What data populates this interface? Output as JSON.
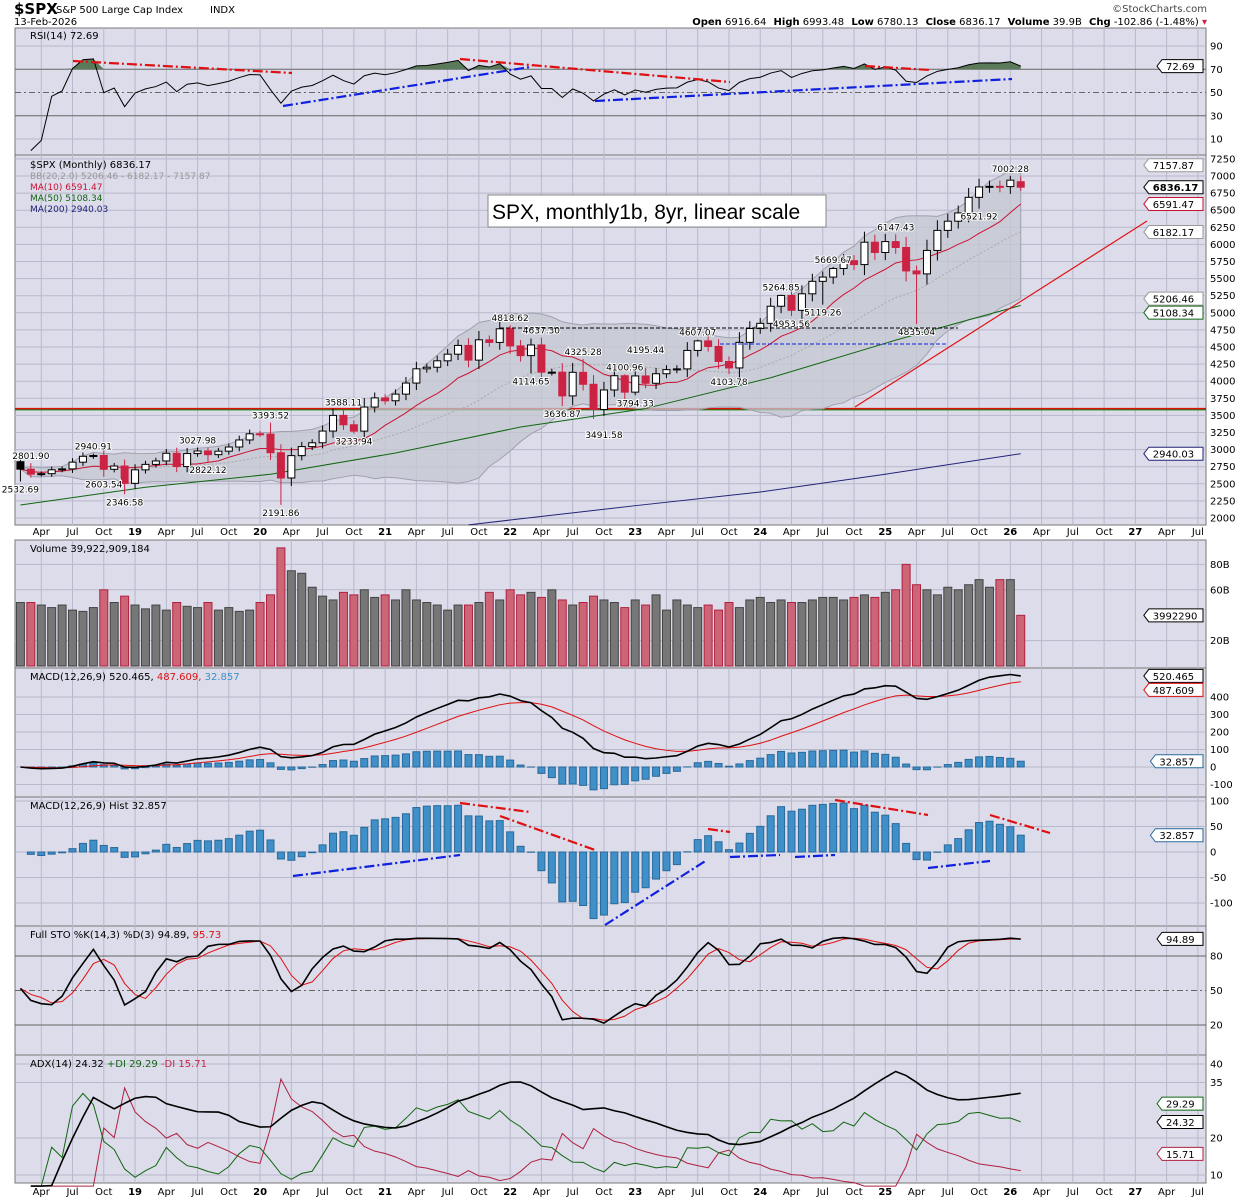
{
  "header": {
    "symbol": "$SPX",
    "name": "S&P 500 Large Cap Index",
    "exchange": "INDX",
    "date": "13-Feb-2026",
    "watermark": "©StockCharts.com",
    "open_label": "Open",
    "open": "6916.64",
    "high_label": "High",
    "high": "6993.48",
    "low_label": "Low",
    "low": "6780.13",
    "close_label": "Close",
    "close": "6836.17",
    "volume_label": "Volume",
    "volume": "39.9B",
    "chg_label": "Chg",
    "chg": "-102.86 (-1.48%)"
  },
  "colors": {
    "up": "#000000",
    "down": "#cc2244",
    "bg": "#dcdcea",
    "ma10": "#cc1133",
    "ma50": "#116611",
    "ma200": "#222277",
    "bb": "#a0a0b0",
    "hist": "#3f8fc8"
  },
  "chart_data": {
    "type": "candlestick",
    "title": "SPX, monthly1b, 8yr, linear scale",
    "start_month": "2018-02",
    "x_axis_labels": [
      "Apr",
      "Jul",
      "Oct",
      "19",
      "Apr",
      "Jul",
      "Oct",
      "20",
      "Apr",
      "Jul",
      "Oct",
      "21",
      "Apr",
      "Jul",
      "Oct",
      "22",
      "Apr",
      "Jul",
      "Oct",
      "23",
      "Apr",
      "Jul",
      "Oct",
      "24",
      "Apr",
      "Jul",
      "Oct",
      "25",
      "Apr",
      "Jul",
      "Oct",
      "26",
      "Apr",
      "Jul",
      "Oct",
      "27",
      "Apr",
      "Jul"
    ],
    "closes": [
      2714,
      2641,
      2648,
      2705,
      2718,
      2816,
      2902,
      2914,
      2712,
      2760,
      2507,
      2704,
      2784,
      2834,
      2946,
      2752,
      2942,
      2980,
      2926,
      2977,
      3038,
      3141,
      3231,
      3226,
      2954,
      2585,
      2912,
      3044,
      3100,
      3271,
      3500,
      3363,
      3270,
      3622,
      3756,
      3714,
      3811,
      3973,
      4181,
      4204,
      4298,
      4395,
      4523,
      4308,
      4605,
      4567,
      4766,
      4516,
      4374,
      4530,
      4132,
      4132,
      3785,
      4130,
      3955,
      3586,
      3872,
      4080,
      3840,
      4077,
      3970,
      4109,
      4169,
      4180,
      4450,
      4589,
      4508,
      4288,
      4194,
      4568,
      4770,
      4846,
      5096,
      5254,
      5036,
      5278,
      5460,
      5522,
      5648,
      5762,
      5705,
      6032,
      5882,
      6041,
      5955,
      5612,
      5569,
      5912,
      6205,
      6339,
      6460,
      6688,
      6840,
      6849,
      6845,
      6939,
      6836.17
    ],
    "first_open": 2823,
    "last_bar": {
      "open": 6916.64,
      "high": 6993.48,
      "low": 6780.13,
      "close": 6836.17
    },
    "volume_billions": [
      50,
      50,
      48,
      46,
      48,
      44,
      43,
      46,
      60,
      50,
      55,
      48,
      45,
      48,
      44,
      50,
      47,
      46,
      50,
      44,
      46,
      43,
      44,
      50,
      56,
      93,
      75,
      73,
      62,
      55,
      52,
      58,
      56,
      60,
      54,
      56,
      52,
      60,
      52,
      50,
      48,
      44,
      48,
      48,
      50,
      58,
      52,
      60,
      56,
      58,
      54,
      60,
      52,
      48,
      50,
      55,
      52,
      50,
      46,
      52,
      48,
      56,
      44,
      52,
      48,
      46,
      48,
      44,
      50,
      46,
      52,
      54,
      50,
      52,
      50,
      50,
      52,
      54,
      54,
      52,
      54,
      56,
      54,
      58,
      60,
      80,
      64,
      60,
      56,
      62,
      60,
      64,
      68,
      62,
      68,
      68,
      39.9
    ],
    "annotations": [
      {
        "month": 2,
        "label": "2801.90",
        "kind": "high"
      },
      {
        "month": 1,
        "label": "2532.69",
        "kind": "low"
      },
      {
        "month": 8,
        "label": "2940.91",
        "kind": "high"
      },
      {
        "month": 9,
        "label": "2603.54",
        "kind": "low"
      },
      {
        "month": 11,
        "label": "2346.58",
        "kind": "low"
      },
      {
        "month": 18,
        "label": "3027.98",
        "kind": "high"
      },
      {
        "month": 19,
        "label": "2822.12",
        "kind": "low"
      },
      {
        "month": 25,
        "label": "3393.52",
        "kind": "high"
      },
      {
        "month": 26,
        "label": "2191.86",
        "kind": "low"
      },
      {
        "month": 32,
        "label": "3588.11",
        "kind": "high"
      },
      {
        "month": 33,
        "label": "3233.94",
        "kind": "low"
      },
      {
        "month": 48,
        "label": "4818.62",
        "kind": "high"
      },
      {
        "month": 51,
        "label": "4637.30",
        "kind": "high"
      },
      {
        "month": 50,
        "label": "4114.65",
        "kind": "low"
      },
      {
        "month": 53,
        "label": "3636.87",
        "kind": "low"
      },
      {
        "month": 55,
        "label": "4325.28",
        "kind": "high"
      },
      {
        "month": 57,
        "label": "3491.58",
        "kind": "low"
      },
      {
        "month": 59,
        "label": "4100.96",
        "kind": "high"
      },
      {
        "month": 60,
        "label": "3794.33",
        "kind": "low"
      },
      {
        "month": 61,
        "label": "4195.44",
        "kind": "high"
      },
      {
        "month": 66,
        "label": "4607.07",
        "kind": "high"
      },
      {
        "month": 69,
        "label": "4103.78",
        "kind": "low"
      },
      {
        "month": 75,
        "label": "4953.56",
        "kind": "low"
      },
      {
        "month": 74,
        "label": "5264.85",
        "kind": "high"
      },
      {
        "month": 78,
        "label": "5119.26",
        "kind": "low"
      },
      {
        "month": 79,
        "label": "5669.67",
        "kind": "high"
      },
      {
        "month": 85,
        "label": "6147.43",
        "kind": "high"
      },
      {
        "month": 87,
        "label": "4835.04",
        "kind": "low"
      },
      {
        "month": 93,
        "label": "6521.92",
        "kind": "low"
      },
      {
        "month": 96,
        "label": "7002.28",
        "kind": "high"
      }
    ],
    "ma50_points": [
      [
        1,
        2190
      ],
      [
        13,
        2450
      ],
      [
        25,
        2640
      ],
      [
        37,
        2950
      ],
      [
        49,
        3330
      ],
      [
        61,
        3600
      ],
      [
        73,
        4050
      ],
      [
        85,
        4600
      ],
      [
        97,
        5108.34
      ]
    ],
    "ma200_points": [
      [
        44,
        1900
      ],
      [
        60,
        2180
      ],
      [
        72,
        2380
      ],
      [
        84,
        2640
      ],
      [
        97,
        2940.03
      ]
    ],
    "price_ticks": [
      "7250",
      "7000",
      "6750",
      "6500",
      "6250",
      "6000",
      "5750",
      "5500",
      "5250",
      "5000",
      "4750",
      "4500",
      "4250",
      "4000",
      "3750",
      "3500",
      "3250",
      "3000",
      "2750",
      "2500",
      "2250",
      "2000"
    ],
    "support_level": 3588.11
  },
  "price_panel": {
    "legend_main": "$SPX (Monthly) 6836.17",
    "legend_bb": "BB(20,2.0) 5206.46 - 6182.17 - 7157.87",
    "legend_ma10": "MA(10) 6591.47",
    "legend_ma50": "MA(50) 5108.34",
    "legend_ma200": "MA(200) 2940.03",
    "tags": {
      "bb_upper": "7157.87",
      "close": "6836.17",
      "ma10": "6591.47",
      "bb_mid": "6182.17",
      "bb_lower": "5206.46",
      "ma50": "5108.34",
      "ma200": "2940.03"
    }
  },
  "rsi_panel": {
    "legend": "RSI(14) 72.69",
    "value": "72.69",
    "ticks": [
      "90",
      "70",
      "50",
      "30",
      "10"
    ]
  },
  "volume_panel": {
    "legend": "Volume 39,922,909,184",
    "value_tag": "3992290",
    "ticks": [
      "80B",
      "60B",
      "20B"
    ]
  },
  "macd_panel": {
    "legend_a": "MACD(12,26,9) 520.465,",
    "legend_b": "487.609,",
    "legend_c": "32.857",
    "macd_tag": "520.465",
    "signal_tag": "487.609",
    "hist_tag": "32.857",
    "ticks": [
      "400",
      "300",
      "200",
      "100",
      "0",
      "-100"
    ]
  },
  "hist_panel": {
    "legend": "MACD(12,26,9) Hist 32.857",
    "tag": "32.857",
    "ticks": [
      "100",
      "50",
      "0",
      "-50",
      "-100"
    ]
  },
  "sto_panel": {
    "legend_a": "Full STO %K(14,3) %D(3) 94.89,",
    "legend_b": "95.73",
    "tag": "94.89",
    "ticks": [
      "80",
      "50",
      "20"
    ]
  },
  "adx_panel": {
    "legend_a": "ADX(14) 24.32",
    "legend_b": "+DI 29.29",
    "legend_c": "-DI 15.71",
    "adx_tag": "24.32",
    "pdi_tag": "29.29",
    "mdi_tag": "15.71",
    "ticks": [
      "40",
      "35",
      "20",
      "10"
    ]
  }
}
